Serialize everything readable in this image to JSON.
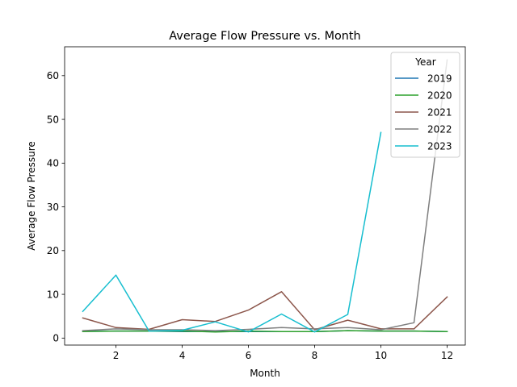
{
  "chart_data": {
    "type": "line",
    "title": "Average Flow Pressure vs. Month",
    "xlabel": "Month",
    "ylabel": "Average Flow Pressure",
    "xlim": [
      0.45,
      12.55
    ],
    "ylim": [
      -1.6,
      66.6
    ],
    "x_ticks": [
      2,
      4,
      6,
      8,
      10,
      12
    ],
    "y_ticks": [
      0,
      10,
      20,
      30,
      40,
      50,
      60
    ],
    "grid": false,
    "legend": {
      "title": "Year",
      "placement": "top-right"
    },
    "series": [
      {
        "name": "2019",
        "color": "#1f77b4",
        "x": [
          1,
          2,
          3,
          4,
          5,
          6,
          7,
          8,
          9,
          10,
          11,
          12
        ],
        "y": [
          1.6,
          1.6,
          1.6,
          1.5,
          1.5,
          1.5,
          1.5,
          1.5,
          1.7,
          1.6,
          1.6,
          1.5
        ]
      },
      {
        "name": "2020",
        "color": "#2ca02c",
        "x": [
          1,
          2,
          3,
          4,
          5,
          6,
          7,
          8,
          9,
          10,
          11,
          12
        ],
        "y": [
          1.5,
          1.6,
          1.6,
          1.6,
          1.4,
          1.6,
          1.5,
          1.5,
          1.7,
          1.6,
          1.6,
          1.5
        ]
      },
      {
        "name": "2021",
        "color": "#8c564b",
        "x": [
          1,
          2,
          3,
          4,
          5,
          6,
          7,
          8,
          9,
          10,
          11,
          12
        ],
        "y": [
          4.6,
          2.4,
          2.0,
          4.2,
          3.8,
          6.4,
          10.6,
          1.9,
          4.1,
          2.1,
          2.1,
          9.4
        ]
      },
      {
        "name": "2022",
        "color": "#7f7f7f",
        "x": [
          1,
          2,
          3,
          4,
          5,
          6,
          7,
          8,
          9,
          10,
          11,
          12
        ],
        "y": [
          1.7,
          2.1,
          1.9,
          1.9,
          1.7,
          2.0,
          2.4,
          2.1,
          2.4,
          1.9,
          3.5,
          63.6
        ]
      },
      {
        "name": "2023",
        "color": "#17becf",
        "x": [
          1,
          2,
          3,
          4,
          5,
          6,
          7,
          8,
          9,
          10
        ],
        "y": [
          6.1,
          14.4,
          1.6,
          1.8,
          3.7,
          1.4,
          5.5,
          1.4,
          5.4,
          47.0
        ]
      }
    ]
  }
}
